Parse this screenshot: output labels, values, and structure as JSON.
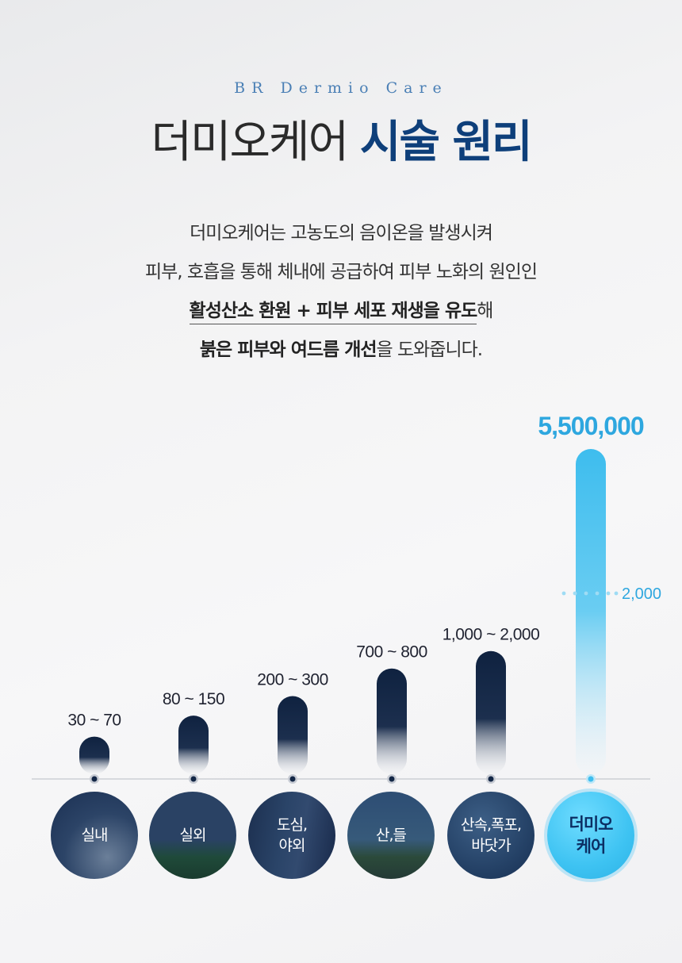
{
  "header": {
    "eyebrow": "BR Dermio Care",
    "title_part1": "더미오케어",
    "title_part2": "시술 원리"
  },
  "description": {
    "line1": "더미오케어는 고농도의 음이온을 발생시켜",
    "line2": "피부, 호흡을 통해 체내에 공급하여 피부 노화의 원인인",
    "line3_bold": "활성산소 환원 + 피부 세포 재생을 유도",
    "line3_end": "해",
    "line4_bold": "붉은 피부와 여드름 개선",
    "line4_end": "을 도와줍니다."
  },
  "chart_data": {
    "type": "bar",
    "categories": [
      "실내",
      "실외",
      "도심, 야외",
      "산, 들",
      "산속, 폭포, 바닷가",
      "더미오케어"
    ],
    "value_labels": [
      "30 ~ 70",
      "80 ~ 150",
      "200 ~ 300",
      "700 ~ 800",
      "1,000 ~ 2,000",
      "5,500,000"
    ],
    "ranges": [
      [
        30,
        70
      ],
      [
        80,
        150
      ],
      [
        200,
        300
      ],
      [
        700,
        800
      ],
      [
        1000,
        2000
      ],
      [
        5500000,
        5500000
      ]
    ],
    "reference_label": "2,000",
    "reference_value": 2000,
    "highlight_index": 5,
    "colors": {
      "bar": "#0f2240",
      "highlight": "#3ebdee",
      "value_text": "#1f2230",
      "highlight_text": "#2ea7df",
      "baseline": "#b8bcc4"
    },
    "xlabel": "",
    "ylabel": ""
  },
  "categories_display": [
    {
      "line1": "실내",
      "line2": ""
    },
    {
      "line1": "실외",
      "line2": ""
    },
    {
      "line1": "도심,",
      "line2": "야외"
    },
    {
      "line1": "산,들",
      "line2": ""
    },
    {
      "line1": "산속,폭포,",
      "line2": "바닷가"
    },
    {
      "line1": "더미오",
      "line2": "케어"
    }
  ]
}
